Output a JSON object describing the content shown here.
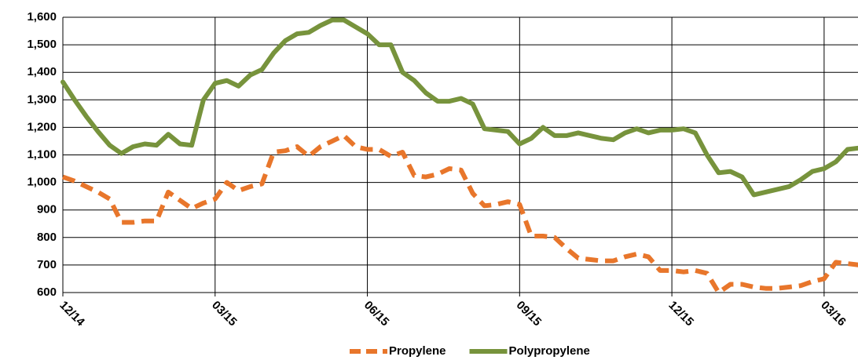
{
  "chart_data": {
    "type": "line",
    "x": [
      0,
      1,
      2,
      3,
      4,
      5,
      6,
      7,
      8,
      9,
      10,
      11,
      12,
      13,
      14,
      15,
      16,
      17,
      18,
      19,
      20,
      21,
      22,
      23,
      24,
      25,
      26,
      27,
      28,
      29,
      30,
      31,
      32,
      33,
      34,
      35,
      36,
      37,
      38,
      39,
      40,
      41,
      42,
      43,
      44,
      45,
      46,
      47,
      48,
      49,
      50,
      51,
      52,
      53,
      54,
      55,
      56,
      57,
      58,
      59,
      60,
      61,
      62,
      63,
      64,
      65,
      66,
      67,
      68
    ],
    "series": [
      {
        "name": "Propylene",
        "color": "#e8762b",
        "dashed": true,
        "values": [
          1020,
          1005,
          985,
          965,
          940,
          855,
          855,
          860,
          860,
          965,
          935,
          905,
          925,
          940,
          1000,
          970,
          985,
          995,
          1110,
          1115,
          1130,
          1095,
          1130,
          1150,
          1170,
          1130,
          1120,
          1120,
          1095,
          1110,
          1025,
          1020,
          1030,
          1050,
          1045,
          960,
          915,
          920,
          930,
          920,
          805,
          805,
          800,
          760,
          725,
          720,
          715,
          715,
          730,
          740,
          730,
          680,
          680,
          675,
          680,
          670,
          600,
          630,
          630,
          620,
          615,
          615,
          620,
          625,
          640,
          650,
          710,
          705,
          700
        ]
      },
      {
        "name": "Polypropylene",
        "color": "#77933c",
        "dashed": false,
        "values": [
          1365,
          1300,
          1240,
          1185,
          1135,
          1105,
          1130,
          1140,
          1135,
          1175,
          1140,
          1135,
          1300,
          1360,
          1370,
          1350,
          1390,
          1410,
          1470,
          1515,
          1540,
          1545,
          1570,
          1590,
          1590,
          1565,
          1540,
          1500,
          1500,
          1400,
          1370,
          1325,
          1295,
          1295,
          1305,
          1285,
          1195,
          1190,
          1185,
          1140,
          1160,
          1200,
          1170,
          1170,
          1180,
          1170,
          1160,
          1155,
          1180,
          1195,
          1180,
          1190,
          1190,
          1195,
          1180,
          1100,
          1035,
          1040,
          1020,
          955,
          965,
          975,
          985,
          1010,
          1040,
          1050,
          1075,
          1120,
          1125
        ]
      }
    ],
    "xlim": [
      0,
      68
    ],
    "xticks": [
      {
        "value": 0,
        "label": "12/14"
      },
      {
        "value": 13,
        "label": "03/15"
      },
      {
        "value": 26,
        "label": "06/15"
      },
      {
        "value": 39,
        "label": "09/15"
      },
      {
        "value": 52,
        "label": "12/15"
      },
      {
        "value": 65,
        "label": "03/16"
      }
    ],
    "ylim": [
      600,
      1600
    ],
    "yticks": [
      600,
      700,
      800,
      900,
      {
        "value": 1000,
        "label": "1,000"
      },
      {
        "value": 1100,
        "label": "1,100"
      },
      {
        "value": 1200,
        "label": "1,200"
      },
      {
        "value": 1300,
        "label": "1,300"
      },
      {
        "value": 1400,
        "label": "1,400"
      },
      {
        "value": 1500,
        "label": "1,500"
      },
      {
        "value": 1600,
        "label": "1,600"
      }
    ],
    "grid": true
  }
}
